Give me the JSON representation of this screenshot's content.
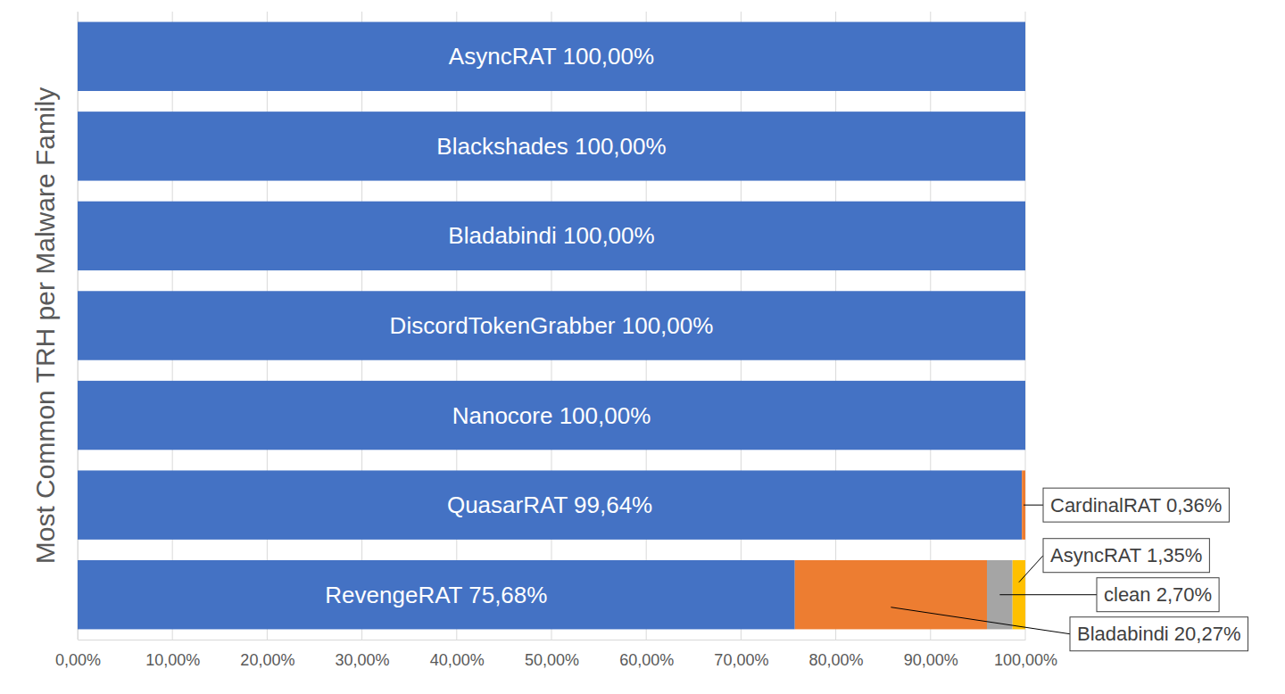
{
  "chart_data": {
    "type": "bar",
    "orientation": "horizontal",
    "stacked": true,
    "data_labels": true,
    "grid": true,
    "tick_labels": "x",
    "y_label": "Most Common TRH per Malware Family",
    "categories": [
      null,
      null,
      null,
      null,
      null,
      null,
      null
    ],
    "xlim": [
      0,
      100
    ],
    "xticks": [
      {
        "value": 0,
        "label": "0,00%"
      },
      {
        "value": 10,
        "label": "10,00%"
      },
      {
        "value": 20,
        "label": "20,00%"
      },
      {
        "value": 30,
        "label": "30,00%"
      },
      {
        "value": 40,
        "label": "40,00%"
      },
      {
        "value": 50,
        "label": "50,00%"
      },
      {
        "value": 60,
        "label": "60,00%"
      },
      {
        "value": 70,
        "label": "70,00%"
      },
      {
        "value": 80,
        "label": "80,00%"
      },
      {
        "value": 90,
        "label": "90,00%"
      },
      {
        "value": 100,
        "label": "100,00%"
      }
    ],
    "series": [
      {
        "color": "#4472c4",
        "values": [
          100,
          100,
          100,
          100,
          100,
          99.64,
          75.68
        ],
        "value_labels": [
          "AsyncRAT 100,00%",
          "Blackshades 100,00%",
          "Bladabindi 100,00%",
          "DiscordTokenGrabber 100,00%",
          "Nanocore 100,00%",
          "QuasarRAT 99,64%",
          "RevengeRAT 75,68%"
        ]
      },
      {
        "color": "#ed7d31",
        "values": [
          null,
          null,
          null,
          null,
          null,
          0.36,
          20.27
        ],
        "value_labels": [
          null,
          null,
          null,
          null,
          null,
          "CardinalRAT 0,36%",
          "Bladabindi 20,27%"
        ]
      },
      {
        "color": "#a5a5a5",
        "values": [
          null,
          null,
          null,
          null,
          null,
          null,
          2.7
        ],
        "value_labels": [
          null,
          null,
          null,
          null,
          null,
          null,
          "clean 2,70%"
        ]
      },
      {
        "color": "#ffc000",
        "values": [
          null,
          null,
          null,
          null,
          null,
          null,
          1.35
        ],
        "value_labels": [
          null,
          null,
          null,
          null,
          null,
          null,
          "AsyncRAT 1,35%"
        ]
      }
    ]
  }
}
